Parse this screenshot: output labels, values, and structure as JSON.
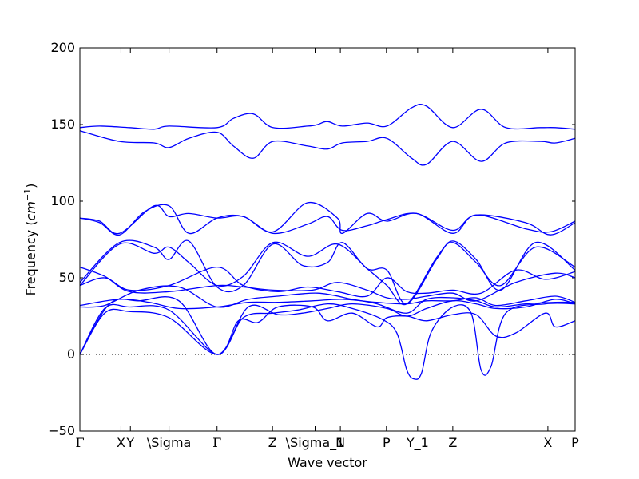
{
  "chart_data": {
    "type": "line",
    "title": "",
    "xlabel": "Wave vector",
    "ylabel_text": "Frequency (",
    "ylabel_unit_base": "cm",
    "ylabel_unit_exp": "−1",
    "ylabel_close": ")",
    "ylim": [
      -50,
      200
    ],
    "yticks": [
      -50,
      0,
      50,
      100,
      150,
      200
    ],
    "xlim": [
      0,
      1
    ],
    "grid": false,
    "line_color": "#0000ff",
    "zero_line_style": "dotted",
    "high_symmetry_points": [
      {
        "label": "Γ",
        "x": 0.0
      },
      {
        "label": "X",
        "x": 0.083
      },
      {
        "label": "Y",
        "x": 0.102
      },
      {
        "label": "\\Sigma",
        "x": 0.18
      },
      {
        "label": "Γ",
        "x": 0.277
      },
      {
        "label": "Z",
        "x": 0.389
      },
      {
        "label": "\\Sigma_1",
        "x": 0.475
      },
      {
        "label": "N",
        "x": 0.526
      },
      {
        "label": "P",
        "x": 0.619
      },
      {
        "label": "Y_1",
        "x": 0.682
      },
      {
        "label": "Z",
        "x": 0.753
      },
      {
        "label": "X",
        "x": 0.945
      },
      {
        "label": "P",
        "x": 1.0
      }
    ],
    "series": [
      {
        "points": [
          [
            0,
            0
          ],
          [
            0.05,
            27
          ],
          [
            0.1,
            28
          ],
          [
            0.18,
            24
          ],
          [
            0.277,
            0
          ],
          [
            0.33,
            24
          ],
          [
            0.39,
            27
          ],
          [
            0.44,
            29
          ],
          [
            0.5,
            33
          ],
          [
            0.55,
            30
          ],
          [
            0.61,
            23
          ],
          [
            0.64,
            14
          ],
          [
            0.66,
            -10
          ],
          [
            0.675,
            -16
          ],
          [
            0.69,
            -12
          ],
          [
            0.71,
            15
          ],
          [
            0.753,
            31
          ],
          [
            0.79,
            27
          ],
          [
            0.81,
            -10
          ],
          [
            0.83,
            -8
          ],
          [
            0.86,
            27
          ],
          [
            0.94,
            33
          ],
          [
            1.0,
            33
          ]
        ]
      },
      {
        "points": [
          [
            0,
            0
          ],
          [
            0.05,
            30
          ],
          [
            0.1,
            31
          ],
          [
            0.18,
            29
          ],
          [
            0.277,
            0
          ],
          [
            0.32,
            22
          ],
          [
            0.36,
            21
          ],
          [
            0.4,
            31
          ],
          [
            0.47,
            31
          ],
          [
            0.5,
            22
          ],
          [
            0.55,
            27
          ],
          [
            0.6,
            18
          ],
          [
            0.62,
            24
          ],
          [
            0.66,
            25
          ],
          [
            0.7,
            22
          ],
          [
            0.753,
            26
          ],
          [
            0.8,
            26
          ],
          [
            0.84,
            12
          ],
          [
            0.88,
            14
          ],
          [
            0.94,
            27
          ],
          [
            0.96,
            18
          ],
          [
            1.0,
            22
          ]
        ]
      },
      {
        "points": [
          [
            0,
            0
          ],
          [
            0.06,
            33
          ],
          [
            0.12,
            35
          ],
          [
            0.2,
            35
          ],
          [
            0.277,
            0
          ],
          [
            0.34,
            31
          ],
          [
            0.4,
            26
          ],
          [
            0.45,
            27
          ],
          [
            0.5,
            30
          ],
          [
            0.55,
            33
          ],
          [
            0.62,
            30
          ],
          [
            0.66,
            25
          ],
          [
            0.7,
            30
          ],
          [
            0.753,
            35
          ],
          [
            0.8,
            33
          ],
          [
            0.84,
            30
          ],
          [
            0.9,
            31
          ],
          [
            0.96,
            36
          ],
          [
            1.0,
            33
          ]
        ]
      },
      {
        "points": [
          [
            0,
            31
          ],
          [
            0.05,
            32
          ],
          [
            0.12,
            42
          ],
          [
            0.2,
            44
          ],
          [
            0.277,
            31
          ],
          [
            0.34,
            36
          ],
          [
            0.4,
            38
          ],
          [
            0.48,
            40
          ],
          [
            0.55,
            36
          ],
          [
            0.6,
            33
          ],
          [
            0.66,
            27
          ],
          [
            0.7,
            36
          ],
          [
            0.753,
            37
          ],
          [
            0.8,
            35
          ],
          [
            0.84,
            31
          ],
          [
            0.9,
            33
          ],
          [
            0.96,
            34
          ],
          [
            1.0,
            34
          ]
        ]
      },
      {
        "points": [
          [
            0,
            32
          ],
          [
            0.08,
            36
          ],
          [
            0.14,
            34
          ],
          [
            0.2,
            30
          ],
          [
            0.277,
            31
          ],
          [
            0.34,
            34
          ],
          [
            0.4,
            34
          ],
          [
            0.47,
            35
          ],
          [
            0.53,
            36
          ],
          [
            0.6,
            34
          ],
          [
            0.66,
            33
          ],
          [
            0.7,
            35
          ],
          [
            0.753,
            35
          ],
          [
            0.8,
            37
          ],
          [
            0.84,
            32
          ],
          [
            0.9,
            35
          ],
          [
            0.96,
            38
          ],
          [
            1.0,
            34
          ]
        ]
      },
      {
        "points": [
          [
            0,
            45
          ],
          [
            0.05,
            50
          ],
          [
            0.1,
            42
          ],
          [
            0.18,
            45
          ],
          [
            0.277,
            57
          ],
          [
            0.33,
            45
          ],
          [
            0.4,
            41
          ],
          [
            0.46,
            44
          ],
          [
            0.52,
            41
          ],
          [
            0.58,
            38
          ],
          [
            0.62,
            50
          ],
          [
            0.66,
            41
          ],
          [
            0.7,
            40
          ],
          [
            0.753,
            42
          ],
          [
            0.81,
            40
          ],
          [
            0.88,
            55
          ],
          [
            0.94,
            49
          ],
          [
            1.0,
            54
          ]
        ]
      },
      {
        "points": [
          [
            0,
            57
          ],
          [
            0.05,
            51
          ],
          [
            0.1,
            41
          ],
          [
            0.18,
            41
          ],
          [
            0.277,
            45
          ],
          [
            0.33,
            44
          ],
          [
            0.39,
            42
          ],
          [
            0.47,
            42
          ],
          [
            0.52,
            47
          ],
          [
            0.58,
            42
          ],
          [
            0.62,
            37
          ],
          [
            0.66,
            36
          ],
          [
            0.7,
            38
          ],
          [
            0.753,
            40
          ],
          [
            0.8,
            35
          ],
          [
            0.88,
            47
          ],
          [
            0.96,
            53
          ],
          [
            1.0,
            50
          ]
        ]
      },
      {
        "points": [
          [
            0,
            45
          ],
          [
            0.08,
            72
          ],
          [
            0.15,
            66
          ],
          [
            0.18,
            70
          ],
          [
            0.22,
            60
          ],
          [
            0.277,
            45
          ],
          [
            0.33,
            51
          ],
          [
            0.39,
            73
          ],
          [
            0.46,
            64
          ],
          [
            0.52,
            72
          ],
          [
            0.58,
            56
          ],
          [
            0.62,
            45
          ],
          [
            0.66,
            33
          ],
          [
            0.72,
            63
          ],
          [
            0.753,
            73
          ],
          [
            0.8,
            60
          ],
          [
            0.85,
            45
          ],
          [
            0.92,
            70
          ],
          [
            1.0,
            57
          ]
        ]
      },
      {
        "points": [
          [
            0,
            47
          ],
          [
            0.08,
            73
          ],
          [
            0.15,
            70
          ],
          [
            0.18,
            62
          ],
          [
            0.22,
            74
          ],
          [
            0.277,
            44
          ],
          [
            0.33,
            45
          ],
          [
            0.39,
            72
          ],
          [
            0.45,
            58
          ],
          [
            0.5,
            60
          ],
          [
            0.53,
            73
          ],
          [
            0.58,
            56
          ],
          [
            0.62,
            55
          ],
          [
            0.66,
            33
          ],
          [
            0.72,
            62
          ],
          [
            0.753,
            74
          ],
          [
            0.8,
            62
          ],
          [
            0.85,
            42
          ],
          [
            0.92,
            73
          ],
          [
            1.0,
            55
          ]
        ]
      },
      {
        "points": [
          [
            0,
            89
          ],
          [
            0.04,
            87
          ],
          [
            0.08,
            79
          ],
          [
            0.15,
            97
          ],
          [
            0.18,
            90
          ],
          [
            0.22,
            92
          ],
          [
            0.277,
            89
          ],
          [
            0.33,
            90
          ],
          [
            0.39,
            80
          ],
          [
            0.46,
            99
          ],
          [
            0.52,
            89
          ],
          [
            0.53,
            79
          ],
          [
            0.58,
            92
          ],
          [
            0.62,
            87
          ],
          [
            0.68,
            92
          ],
          [
            0.753,
            79
          ],
          [
            0.8,
            91
          ],
          [
            0.9,
            82
          ],
          [
            0.95,
            80
          ],
          [
            1.0,
            87
          ]
        ]
      },
      {
        "points": [
          [
            0,
            89
          ],
          [
            0.04,
            86
          ],
          [
            0.08,
            78
          ],
          [
            0.13,
            93
          ],
          [
            0.18,
            97
          ],
          [
            0.22,
            79
          ],
          [
            0.277,
            89
          ],
          [
            0.33,
            90
          ],
          [
            0.39,
            79
          ],
          [
            0.46,
            85
          ],
          [
            0.5,
            90
          ],
          [
            0.53,
            81
          ],
          [
            0.58,
            84
          ],
          [
            0.62,
            88
          ],
          [
            0.68,
            92
          ],
          [
            0.753,
            81
          ],
          [
            0.8,
            91
          ],
          [
            0.9,
            86
          ],
          [
            0.95,
            78
          ],
          [
            1.0,
            86
          ]
        ]
      },
      {
        "points": [
          [
            0,
            146
          ],
          [
            0.08,
            139
          ],
          [
            0.15,
            138
          ],
          [
            0.18,
            135
          ],
          [
            0.22,
            141
          ],
          [
            0.277,
            145
          ],
          [
            0.31,
            136
          ],
          [
            0.35,
            128
          ],
          [
            0.39,
            139
          ],
          [
            0.46,
            136
          ],
          [
            0.5,
            134
          ],
          [
            0.53,
            138
          ],
          [
            0.58,
            139
          ],
          [
            0.62,
            141
          ],
          [
            0.67,
            128
          ],
          [
            0.7,
            124
          ],
          [
            0.753,
            139
          ],
          [
            0.81,
            126
          ],
          [
            0.86,
            138
          ],
          [
            0.93,
            139
          ],
          [
            0.96,
            138
          ],
          [
            1.0,
            141
          ]
        ]
      },
      {
        "points": [
          [
            0,
            148
          ],
          [
            0.04,
            149
          ],
          [
            0.1,
            148
          ],
          [
            0.15,
            147
          ],
          [
            0.18,
            149
          ],
          [
            0.277,
            148
          ],
          [
            0.31,
            154
          ],
          [
            0.35,
            157
          ],
          [
            0.39,
            148
          ],
          [
            0.46,
            149
          ],
          [
            0.48,
            150
          ],
          [
            0.5,
            152
          ],
          [
            0.53,
            149
          ],
          [
            0.58,
            151
          ],
          [
            0.62,
            149
          ],
          [
            0.67,
            161
          ],
          [
            0.7,
            162
          ],
          [
            0.753,
            148
          ],
          [
            0.81,
            160
          ],
          [
            0.86,
            148
          ],
          [
            0.93,
            148
          ],
          [
            0.96,
            148
          ],
          [
            1.0,
            147
          ]
        ]
      }
    ]
  }
}
